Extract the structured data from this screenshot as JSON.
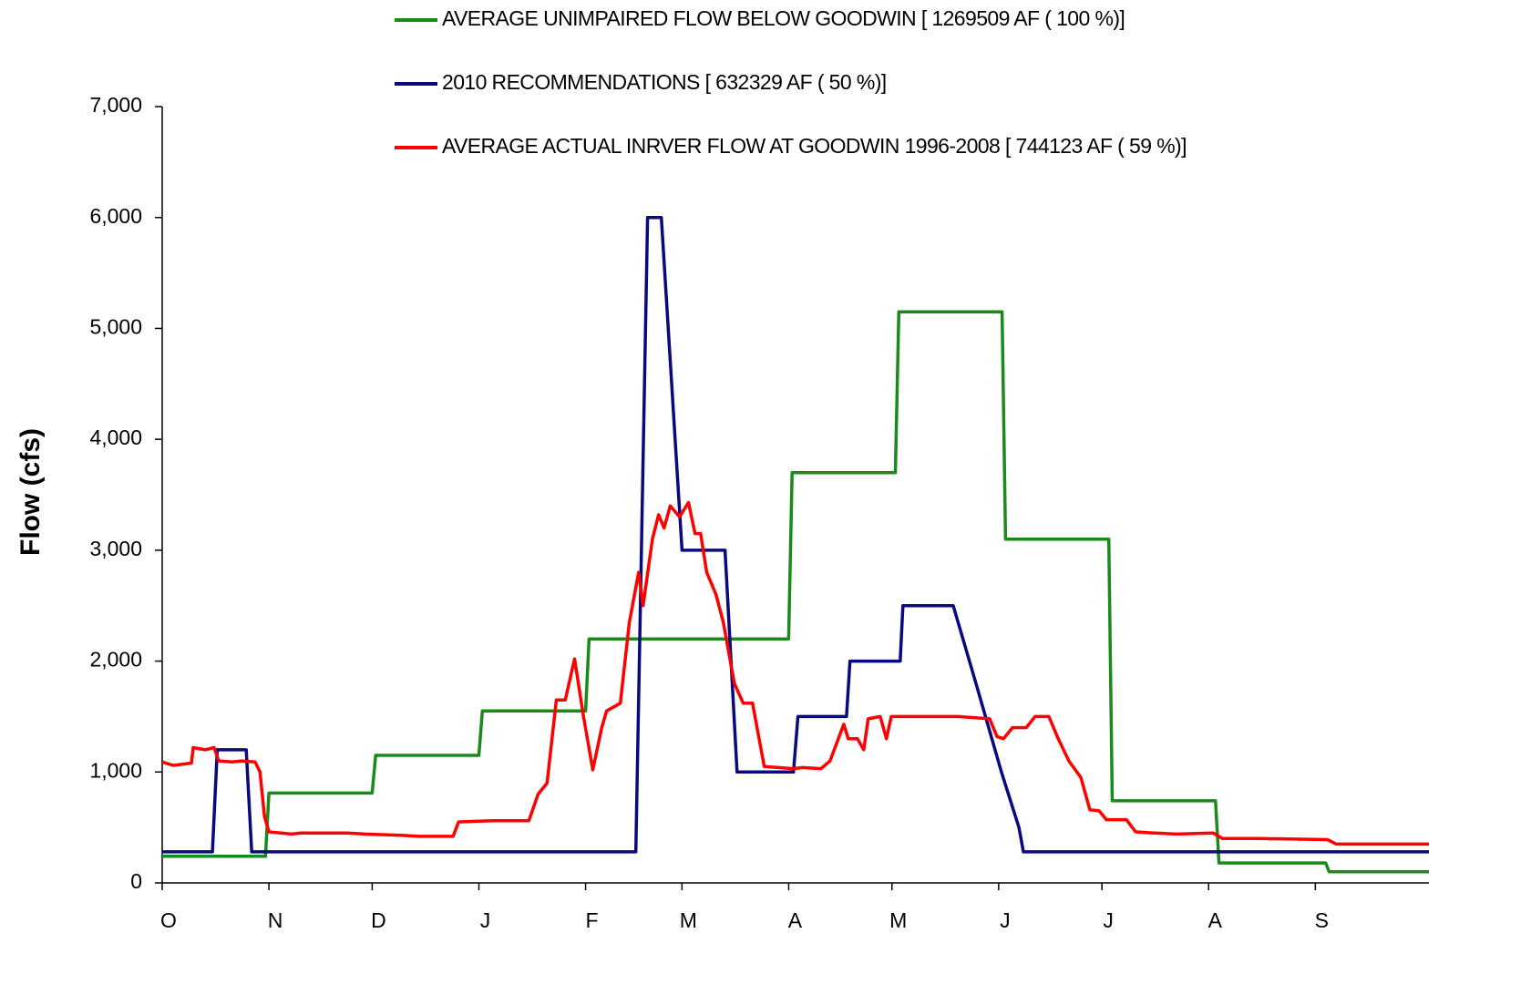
{
  "chart_data": {
    "type": "line",
    "y_label": "Flow (cfs)",
    "xlim": [
      0,
      368
    ],
    "xticks": [
      {
        "value": 0,
        "label": "O"
      },
      {
        "value": 31,
        "label": "N"
      },
      {
        "value": 61,
        "label": "D"
      },
      {
        "value": 92,
        "label": "J"
      },
      {
        "value": 123,
        "label": "F"
      },
      {
        "value": 151,
        "label": "M"
      },
      {
        "value": 182,
        "label": "A"
      },
      {
        "value": 212,
        "label": "M"
      },
      {
        "value": 243,
        "label": "J"
      },
      {
        "value": 273,
        "label": "J"
      },
      {
        "value": 304,
        "label": "A"
      },
      {
        "value": 335,
        "label": "S"
      }
    ],
    "ylim": [
      0,
      7000
    ],
    "yticks": [
      0,
      {
        "value": 1000,
        "label": "1,000"
      },
      {
        "value": 2000,
        "label": "2,000"
      },
      {
        "value": 3000,
        "label": "3,000"
      },
      {
        "value": 4000,
        "label": "4,000"
      },
      {
        "value": 5000,
        "label": "5,000"
      },
      {
        "value": 6000,
        "label": "6,000"
      },
      {
        "value": 7000,
        "label": "7,000"
      }
    ],
    "series": [
      {
        "name": "AVERAGE UNIMPAIRED FLOW BELOW GOODWIN [ 1269509 AF ( 100 %)]",
        "color": "#1a8a1a",
        "x": [
          0,
          30,
          31,
          61,
          62,
          92,
          93,
          123,
          124,
          182,
          183,
          213,
          214,
          244,
          245,
          275,
          276,
          306,
          307,
          338,
          339,
          368
        ],
        "values": [
          240,
          240,
          810,
          810,
          1150,
          1150,
          1550,
          1550,
          2200,
          2200,
          3700,
          3700,
          5150,
          5150,
          3100,
          3100,
          740,
          740,
          180,
          180,
          100,
          100
        ]
      },
      {
        "name": "2010 RECOMMENDATIONS [ 632329 AF ( 50 %)]",
        "color": "#0a0a80",
        "x": [
          0,
          14.6,
          16,
          24.4,
          26,
          137.6,
          141,
          145,
          151,
          163.5,
          167,
          183.4,
          184.7,
          198.8,
          199.8,
          214.4,
          215.2,
          229.8,
          236.4,
          243.8,
          248.9,
          250.2,
          368
        ],
        "values": [
          280,
          280,
          1200,
          1200,
          280,
          280,
          6000,
          6000,
          3000,
          3000,
          1000,
          1000,
          1500,
          1500,
          2000,
          2000,
          2500,
          2500,
          1800,
          1000,
          500,
          280,
          280
        ]
      },
      {
        "name": "AVERAGE ACTUAL INRVER FLOW AT GOODWIN 1996-2008 [ 744123 AF ( 59 %)]",
        "color": "#ff0000",
        "x": [
          0,
          3.2,
          8.5,
          9,
          12.5,
          15.1,
          16.4,
          20.4,
          23.1,
          27,
          28.4,
          29.7,
          31,
          37.6,
          40.3,
          53.5,
          58.8,
          69.4,
          74.7,
          84.5,
          86.1,
          95.9,
          106.5,
          109.2,
          111.8,
          114.5,
          117.1,
          119.8,
          122.4,
          125.1,
          127.7,
          129.1,
          133.1,
          135.7,
          138.4,
          139.7,
          142.4,
          144.2,
          145.8,
          147.6,
          150.3,
          152.9,
          154.8,
          156.4,
          158.2,
          160.9,
          163,
          166.2,
          168.8,
          171.5,
          174.9,
          183.4,
          186,
          191.4,
          194,
          198,
          199.3,
          202,
          203.8,
          205.1,
          208.6,
          210.4,
          211.8,
          217.9,
          231.1,
          240.4,
          242.5,
          244.4,
          247,
          251,
          253.6,
          257.6,
          260.3,
          263.4,
          266.9,
          269.5,
          272.2,
          274.3,
          280.1,
          282.8,
          288.1,
          294.7,
          305.3,
          308,
          318.6,
          338.5,
          341.1,
          363.6,
          368
        ],
        "values": [
          1090,
          1060,
          1080,
          1220,
          1200,
          1220,
          1100,
          1090,
          1100,
          1090,
          1000,
          600,
          460,
          440,
          450,
          450,
          440,
          430,
          420,
          420,
          550,
          560,
          560,
          800,
          900,
          1650,
          1650,
          2020,
          1500,
          1020,
          1400,
          1550,
          1620,
          2350,
          2800,
          2500,
          3100,
          3320,
          3200,
          3400,
          3300,
          3430,
          3150,
          3150,
          2800,
          2600,
          2350,
          1800,
          1620,
          1620,
          1050,
          1030,
          1040,
          1030,
          1100,
          1430,
          1300,
          1300,
          1200,
          1480,
          1500,
          1300,
          1500,
          1500,
          1500,
          1480,
          1320,
          1300,
          1400,
          1400,
          1500,
          1500,
          1300,
          1100,
          950,
          660,
          650,
          570,
          570,
          460,
          450,
          440,
          450,
          400,
          400,
          390,
          350,
          350,
          350
        ]
      }
    ],
    "legend": "top"
  }
}
